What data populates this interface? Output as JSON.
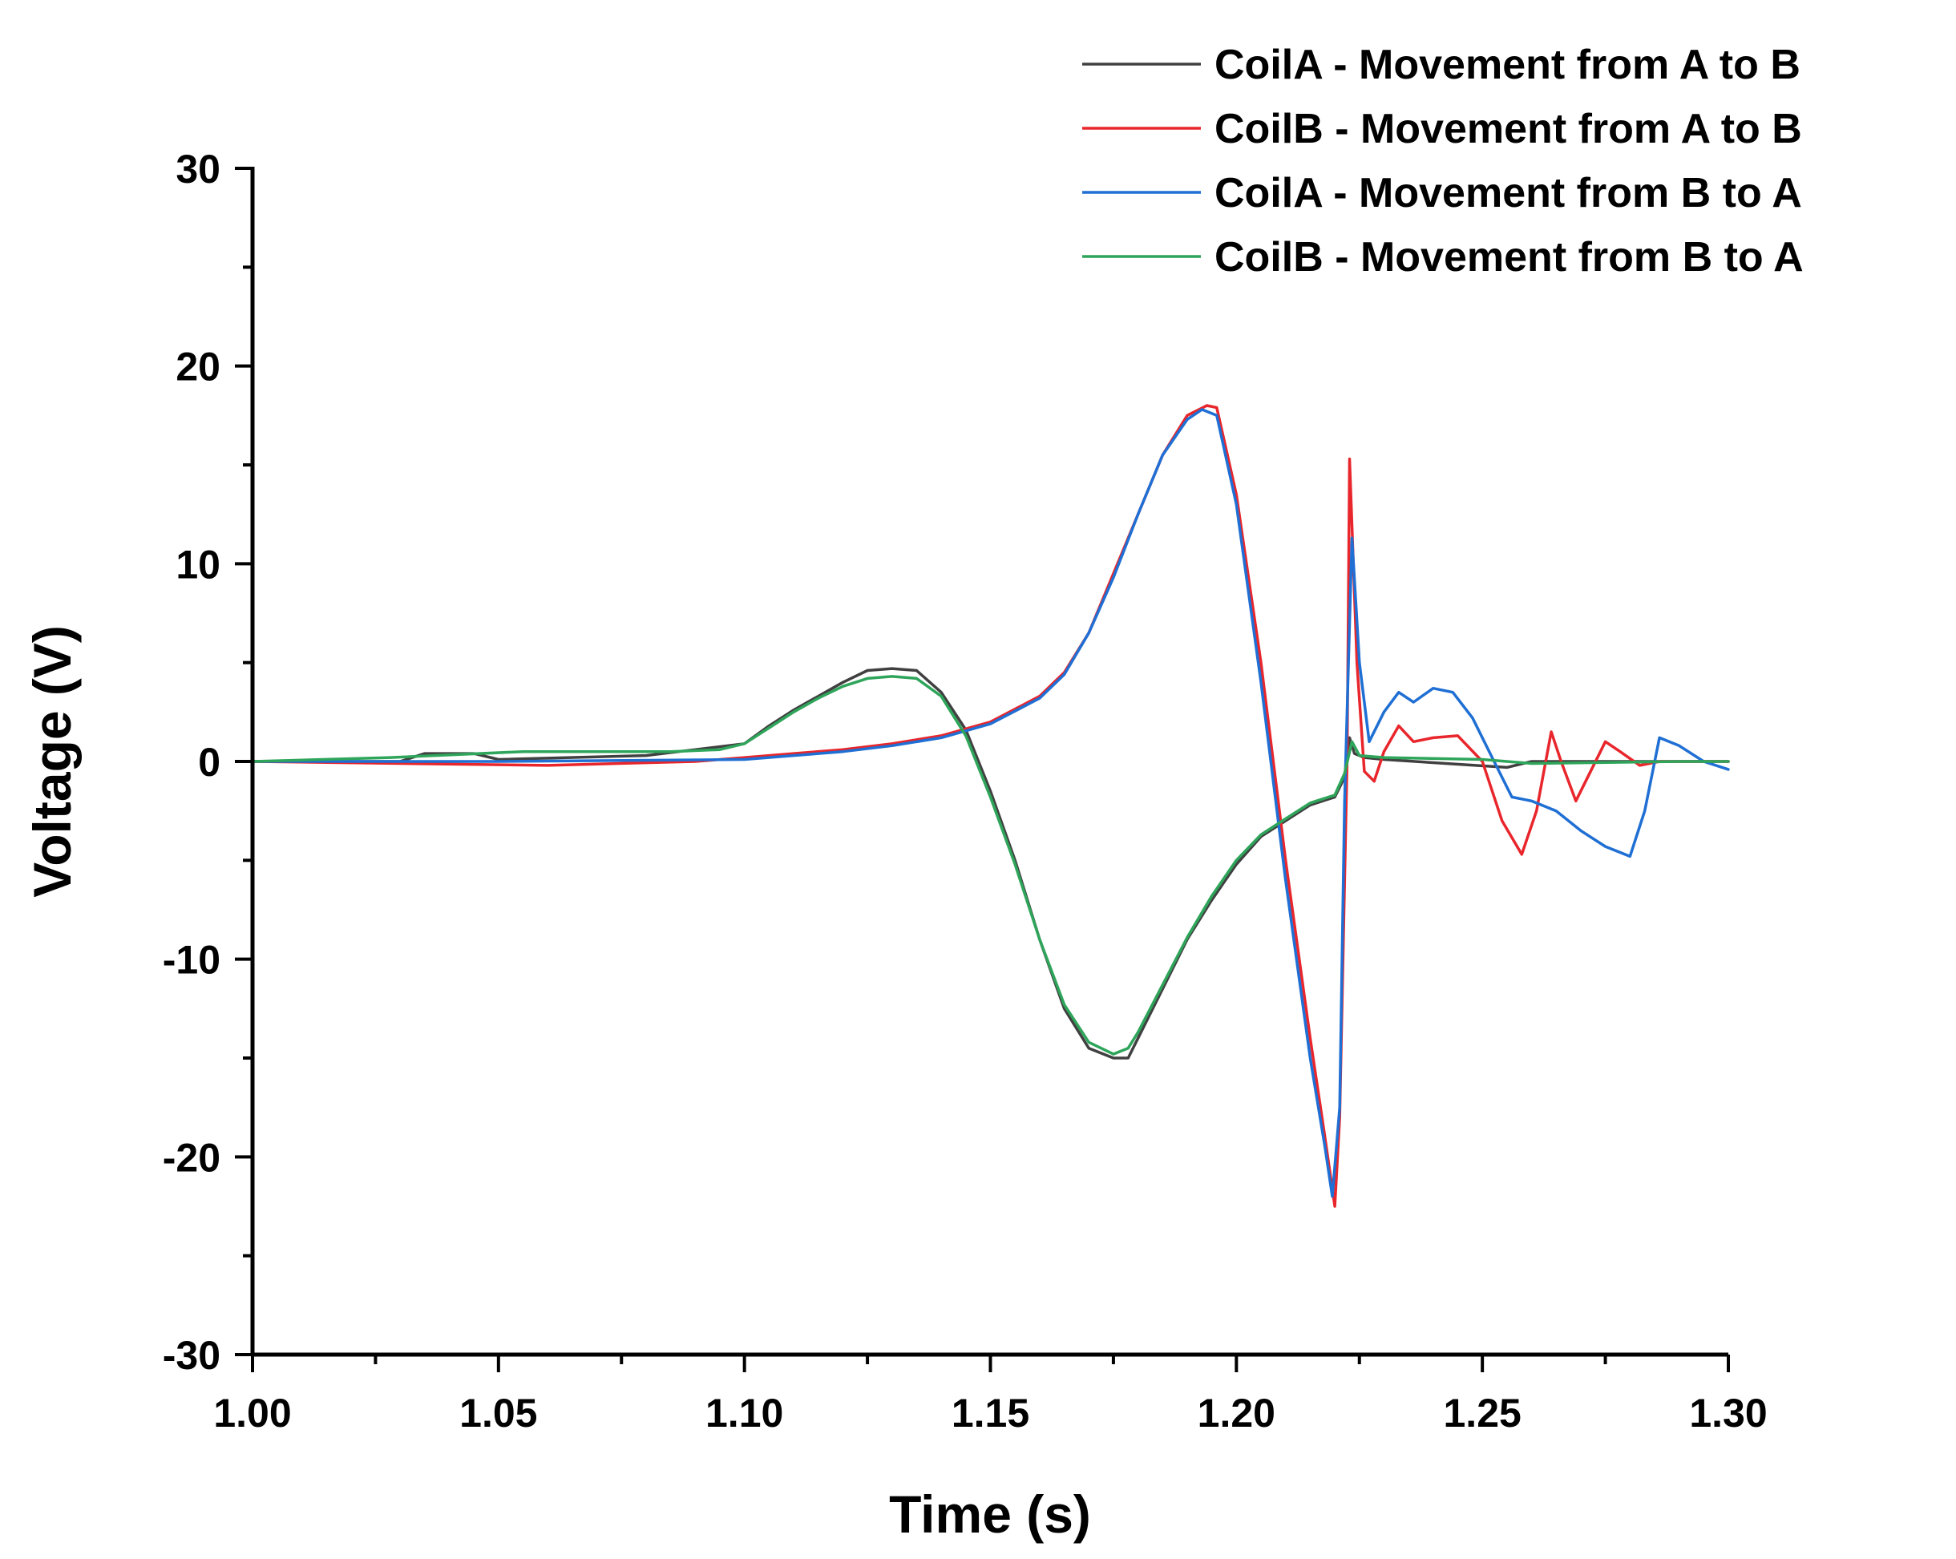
{
  "chart_data": {
    "type": "line",
    "title": "",
    "xlabel": "Time (s)",
    "ylabel": "Voltage (V)",
    "xlim": [
      1.0,
      1.3
    ],
    "ylim": [
      -30,
      30
    ],
    "x_ticks": [
      1.0,
      1.05,
      1.1,
      1.15,
      1.2,
      1.25,
      1.3
    ],
    "x_tick_labels": [
      "1.00",
      "1.05",
      "1.10",
      "1.15",
      "1.20",
      "1.25",
      "1.30"
    ],
    "y_ticks": [
      30,
      20,
      10,
      0,
      -10,
      -20,
      -30
    ],
    "y_tick_labels": [
      "30",
      "20",
      "10",
      "0",
      "-10",
      "-20",
      "-30"
    ],
    "grid": false,
    "legend_position": "top-right",
    "series": [
      {
        "name": "CoilA - Movement from A to B",
        "color": "#404040",
        "x": [
          1.0,
          1.03,
          1.035,
          1.045,
          1.05,
          1.08,
          1.09,
          1.1,
          1.105,
          1.11,
          1.115,
          1.12,
          1.125,
          1.13,
          1.135,
          1.14,
          1.145,
          1.15,
          1.155,
          1.16,
          1.165,
          1.17,
          1.175,
          1.178,
          1.18,
          1.185,
          1.19,
          1.195,
          1.2,
          1.205,
          1.21,
          1.215,
          1.22,
          1.222,
          1.223,
          1.224,
          1.226,
          1.23,
          1.255,
          1.26,
          1.3
        ],
        "values": [
          0.0,
          0.0,
          0.4,
          0.4,
          0.1,
          0.3,
          0.6,
          0.9,
          1.8,
          2.6,
          3.3,
          4.0,
          4.6,
          4.7,
          4.6,
          3.5,
          1.6,
          -1.5,
          -5.0,
          -9.0,
          -12.5,
          -14.5,
          -15.0,
          -15.0,
          -14.0,
          -11.5,
          -9.0,
          -7.0,
          -5.2,
          -3.8,
          -3.0,
          -2.2,
          -1.8,
          -0.8,
          1.2,
          0.4,
          0.2,
          0.1,
          -0.3,
          0.0,
          0.0
        ]
      },
      {
        "name": "CoilB - Movement from A to B",
        "color": "#e8262c",
        "x": [
          1.0,
          1.03,
          1.06,
          1.09,
          1.1,
          1.11,
          1.12,
          1.13,
          1.14,
          1.15,
          1.16,
          1.165,
          1.17,
          1.175,
          1.18,
          1.185,
          1.19,
          1.194,
          1.196,
          1.2,
          1.205,
          1.21,
          1.215,
          1.218,
          1.22,
          1.221,
          1.2225,
          1.223,
          1.2245,
          1.226,
          1.228,
          1.23,
          1.233,
          1.236,
          1.24,
          1.245,
          1.25,
          1.254,
          1.258,
          1.261,
          1.264,
          1.266,
          1.269,
          1.272,
          1.275,
          1.278,
          1.282,
          1.286,
          1.29,
          1.3
        ],
        "values": [
          0.0,
          -0.1,
          -0.2,
          0.0,
          0.2,
          0.4,
          0.6,
          0.9,
          1.3,
          2.0,
          3.3,
          4.5,
          6.5,
          9.5,
          12.5,
          15.5,
          17.5,
          18.0,
          17.9,
          13.5,
          5.0,
          -5.0,
          -14.0,
          -19.0,
          -22.5,
          -18.0,
          0.0,
          15.3,
          5.0,
          -0.5,
          -1.0,
          0.5,
          1.8,
          1.0,
          1.2,
          1.3,
          0.0,
          -3.0,
          -4.7,
          -2.5,
          1.5,
          0.0,
          -2.0,
          -0.5,
          1.0,
          0.5,
          -0.2,
          0.0,
          0.0,
          0.0
        ]
      },
      {
        "name": "CoilA - Movement from B to A",
        "color": "#1f6fd4",
        "x": [
          1.0,
          1.05,
          1.1,
          1.11,
          1.12,
          1.13,
          1.14,
          1.15,
          1.16,
          1.165,
          1.17,
          1.175,
          1.18,
          1.185,
          1.19,
          1.193,
          1.196,
          1.2,
          1.205,
          1.21,
          1.215,
          1.218,
          1.2195,
          1.221,
          1.222,
          1.2235,
          1.225,
          1.227,
          1.23,
          1.233,
          1.236,
          1.24,
          1.244,
          1.248,
          1.252,
          1.256,
          1.26,
          1.265,
          1.27,
          1.275,
          1.28,
          1.283,
          1.286,
          1.29,
          1.295,
          1.3
        ],
        "values": [
          0.0,
          0.0,
          0.1,
          0.3,
          0.5,
          0.8,
          1.2,
          1.9,
          3.2,
          4.4,
          6.5,
          9.3,
          12.5,
          15.5,
          17.3,
          17.8,
          17.5,
          13.0,
          4.0,
          -6.0,
          -15.0,
          -19.5,
          -22.0,
          -17.5,
          -2.0,
          11.3,
          5.0,
          1.0,
          2.5,
          3.5,
          3.0,
          3.7,
          3.5,
          2.2,
          0.2,
          -1.8,
          -2.0,
          -2.5,
          -3.5,
          -4.3,
          -4.8,
          -2.5,
          1.2,
          0.8,
          0.0,
          -0.4
        ]
      },
      {
        "name": "CoilB - Movement from B to A",
        "color": "#2ea55a",
        "x": [
          1.0,
          1.028,
          1.055,
          1.085,
          1.095,
          1.1,
          1.105,
          1.11,
          1.115,
          1.12,
          1.125,
          1.13,
          1.135,
          1.14,
          1.145,
          1.15,
          1.155,
          1.16,
          1.165,
          1.17,
          1.175,
          1.178,
          1.18,
          1.185,
          1.19,
          1.195,
          1.2,
          1.205,
          1.21,
          1.215,
          1.22,
          1.222,
          1.2235,
          1.225,
          1.23,
          1.25,
          1.26,
          1.29,
          1.3
        ],
        "values": [
          0.0,
          0.2,
          0.5,
          0.5,
          0.6,
          0.9,
          1.7,
          2.5,
          3.2,
          3.8,
          4.2,
          4.3,
          4.2,
          3.3,
          1.3,
          -1.8,
          -5.2,
          -9.0,
          -12.3,
          -14.2,
          -14.8,
          -14.5,
          -13.7,
          -11.3,
          -8.9,
          -6.8,
          -5.0,
          -3.7,
          -2.9,
          -2.1,
          -1.7,
          -0.6,
          1.0,
          0.3,
          0.2,
          0.1,
          -0.1,
          0.0,
          0.0
        ]
      }
    ]
  }
}
